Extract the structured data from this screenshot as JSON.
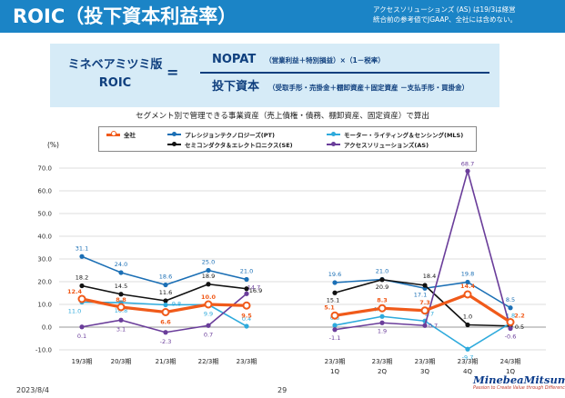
{
  "header": {
    "title": "ROIC（投下資本利益率）",
    "note_line1": "アクセスソリューションズ (AS) は19/3は経営",
    "note_line2": "統合前の参考値でJGAAP、全社には含めない。"
  },
  "formula": {
    "left_line1": "ミネベアミツミ版",
    "left_line2": "ROIC",
    "equals": "=",
    "numerator": "NOPAT",
    "numerator_note": "（営業利益＋特別損益）×（1－税率）",
    "denominator": "投下資本",
    "denominator_note": "（受取手形・売掛金＋棚卸資産＋固定資産 －支払手形・買掛金）"
  },
  "caption": "セグメント別で管理できる事業資産（売上債権・債務、棚卸資産、固定資産）で算出",
  "footer": {
    "date": "2023/8/4",
    "page": "29",
    "logo": "MinebeaMitsumi",
    "tagline": "Passion to Create Value through Difference"
  },
  "colors": {
    "header_bg": "#1b84c6",
    "formula_bg": "#d6ebf7",
    "zensha": "#f05a1a",
    "pt": "#1b6fb5",
    "se": "#111111",
    "mls": "#2eaadc",
    "as": "#6a3d9a"
  },
  "chart_data": {
    "type": "line",
    "ylabel": "(%)",
    "ylim": [
      -10,
      70
    ],
    "yticks": [
      "70.0",
      "60.0",
      "50.0",
      "40.0",
      "30.0",
      "20.0",
      "10.0",
      "0.0",
      "-10.0"
    ],
    "grid": true,
    "legend_position": "top",
    "groups": [
      {
        "categories": [
          "19/3期",
          "20/3期",
          "21/3期",
          "22/3期",
          "23/3期"
        ]
      },
      {
        "categories": [
          "23/3期\n1Q",
          "23/3期\n2Q",
          "23/3期\n3Q",
          "23/3期\n4Q",
          "24/3期\n1Q"
        ]
      }
    ],
    "series": [
      {
        "name": "全社",
        "color": "#f05a1a",
        "annual": [
          12.4,
          8.8,
          6.6,
          10.0,
          9.5
        ],
        "annual_labels": [
          "12.4",
          "8.8",
          "6.6",
          "10.0",
          "9.5"
        ],
        "quarterly": [
          5.1,
          8.3,
          7.3,
          14.4,
          2.2
        ],
        "quarterly_labels": [
          "5.1",
          "8.3",
          "7.3",
          "14.4",
          "2.2"
        ]
      },
      {
        "name": "プレシジョンテクノロジーズ(PT)",
        "color": "#1b6fb5",
        "annual": [
          31.1,
          24.0,
          18.6,
          25.0,
          21.0
        ],
        "annual_labels": [
          "31.1",
          "24.0",
          "18.6",
          "25.0",
          "21.0"
        ],
        "quarterly": [
          19.6,
          21.0,
          17.1,
          19.8,
          8.5
        ],
        "quarterly_labels": [
          "19.6",
          "21.0",
          "17.1",
          "19.8",
          "8.5"
        ]
      },
      {
        "name": "セミコンダクタ＆エレクトロニクス(SE)",
        "color": "#111111",
        "annual": [
          18.2,
          14.5,
          11.6,
          18.9,
          16.9
        ],
        "annual_labels": [
          "18.2",
          "14.5",
          "11.6",
          "18.9",
          "16.9"
        ],
        "quarterly": [
          15.1,
          20.9,
          18.4,
          1.0,
          0.5
        ],
        "quarterly_labels": [
          "15.1",
          "20.9",
          "18.4",
          "1.0",
          "0.5"
        ]
      },
      {
        "name": "モーター・ライティング＆センシング(MLS)",
        "color": "#2eaadc",
        "annual": [
          11.0,
          10.8,
          9.8,
          9.9,
          0.4
        ],
        "annual_labels": [
          "11.0",
          "10.8",
          "9.8",
          "9.9",
          "0.4"
        ],
        "quarterly": [
          0.8,
          4.7,
          2.7,
          -9.7,
          1.8
        ],
        "quarterly_labels": [
          "0.8",
          "4.7",
          "2.7",
          "-9.7",
          "1.8"
        ]
      },
      {
        "name": "アクセスソリューションズ(AS)",
        "color": "#6a3d9a",
        "annual": [
          0.1,
          3.1,
          -2.3,
          0.7,
          14.7
        ],
        "annual_labels": [
          "0.1",
          "3.1",
          "-2.3",
          "0.7",
          "14.7"
        ],
        "quarterly": [
          -1.1,
          1.9,
          0.7,
          68.7,
          -0.6
        ],
        "quarterly_labels": [
          "-1.1",
          "1.9",
          "0.7",
          "68.7",
          "-0.6"
        ]
      }
    ]
  }
}
